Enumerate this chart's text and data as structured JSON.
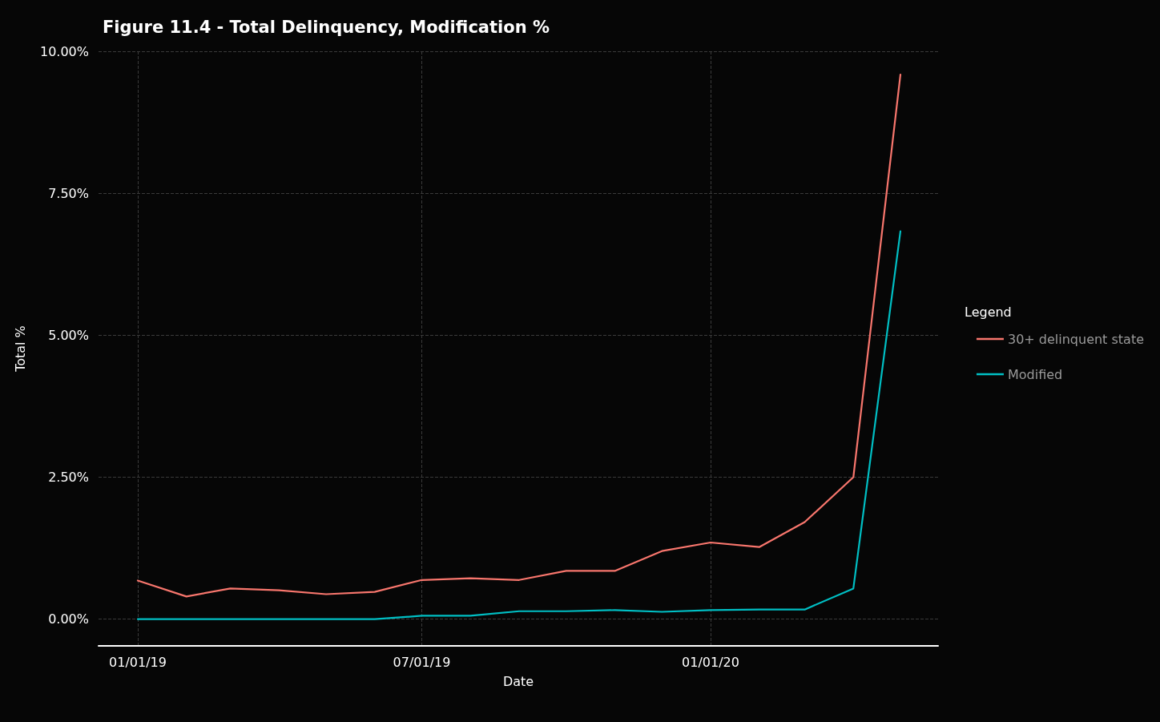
{
  "chart_data": {
    "type": "line",
    "title": "Figure 11.4 - Total Delinquency, Modification %",
    "xlabel": "Date",
    "ylabel": "Total %",
    "legend_title": "Legend",
    "x": [
      "2019-01",
      "2019-02",
      "2019-03",
      "2019-04",
      "2019-05",
      "2019-06",
      "2019-07",
      "2019-08",
      "2019-09",
      "2019-10",
      "2019-11",
      "2019-12",
      "2020-01",
      "2020-02",
      "2020-03",
      "2020-04",
      "2020-05"
    ],
    "series": [
      {
        "name": "30+ delinquent state",
        "color": "#f8766d",
        "values": [
          0.68,
          0.4,
          0.54,
          0.51,
          0.44,
          0.48,
          0.69,
          0.72,
          0.69,
          0.85,
          0.85,
          1.2,
          1.35,
          1.27,
          1.71,
          2.5,
          9.59
        ]
      },
      {
        "name": "Modified",
        "color": "#00bfc4",
        "values": [
          0,
          0,
          0,
          0,
          0,
          0,
          0.06,
          0.06,
          0.14,
          0.14,
          0.16,
          0.13,
          0.16,
          0.17,
          0.17,
          0.54,
          6.83
        ]
      }
    ],
    "xlim": [
      "2018-12-07",
      "2020-05-25"
    ],
    "xticks": [
      {
        "value": "2019-01-01",
        "label": "01/01/19"
      },
      {
        "value": "2019-07-01",
        "label": "07/01/19"
      },
      {
        "value": "2020-01-01",
        "label": "01/01/20"
      }
    ],
    "ylim": [
      -0.47,
      10
    ],
    "yticks": [
      {
        "value": 0,
        "label": "0.00%"
      },
      {
        "value": 2.5,
        "label": "2.50%"
      },
      {
        "value": 5,
        "label": "5.00%"
      },
      {
        "value": 7.5,
        "label": "7.50%"
      },
      {
        "value": 10,
        "label": "10.00%"
      }
    ],
    "grid": true,
    "legend": "right",
    "marker": "none",
    "line_style": "solid"
  }
}
